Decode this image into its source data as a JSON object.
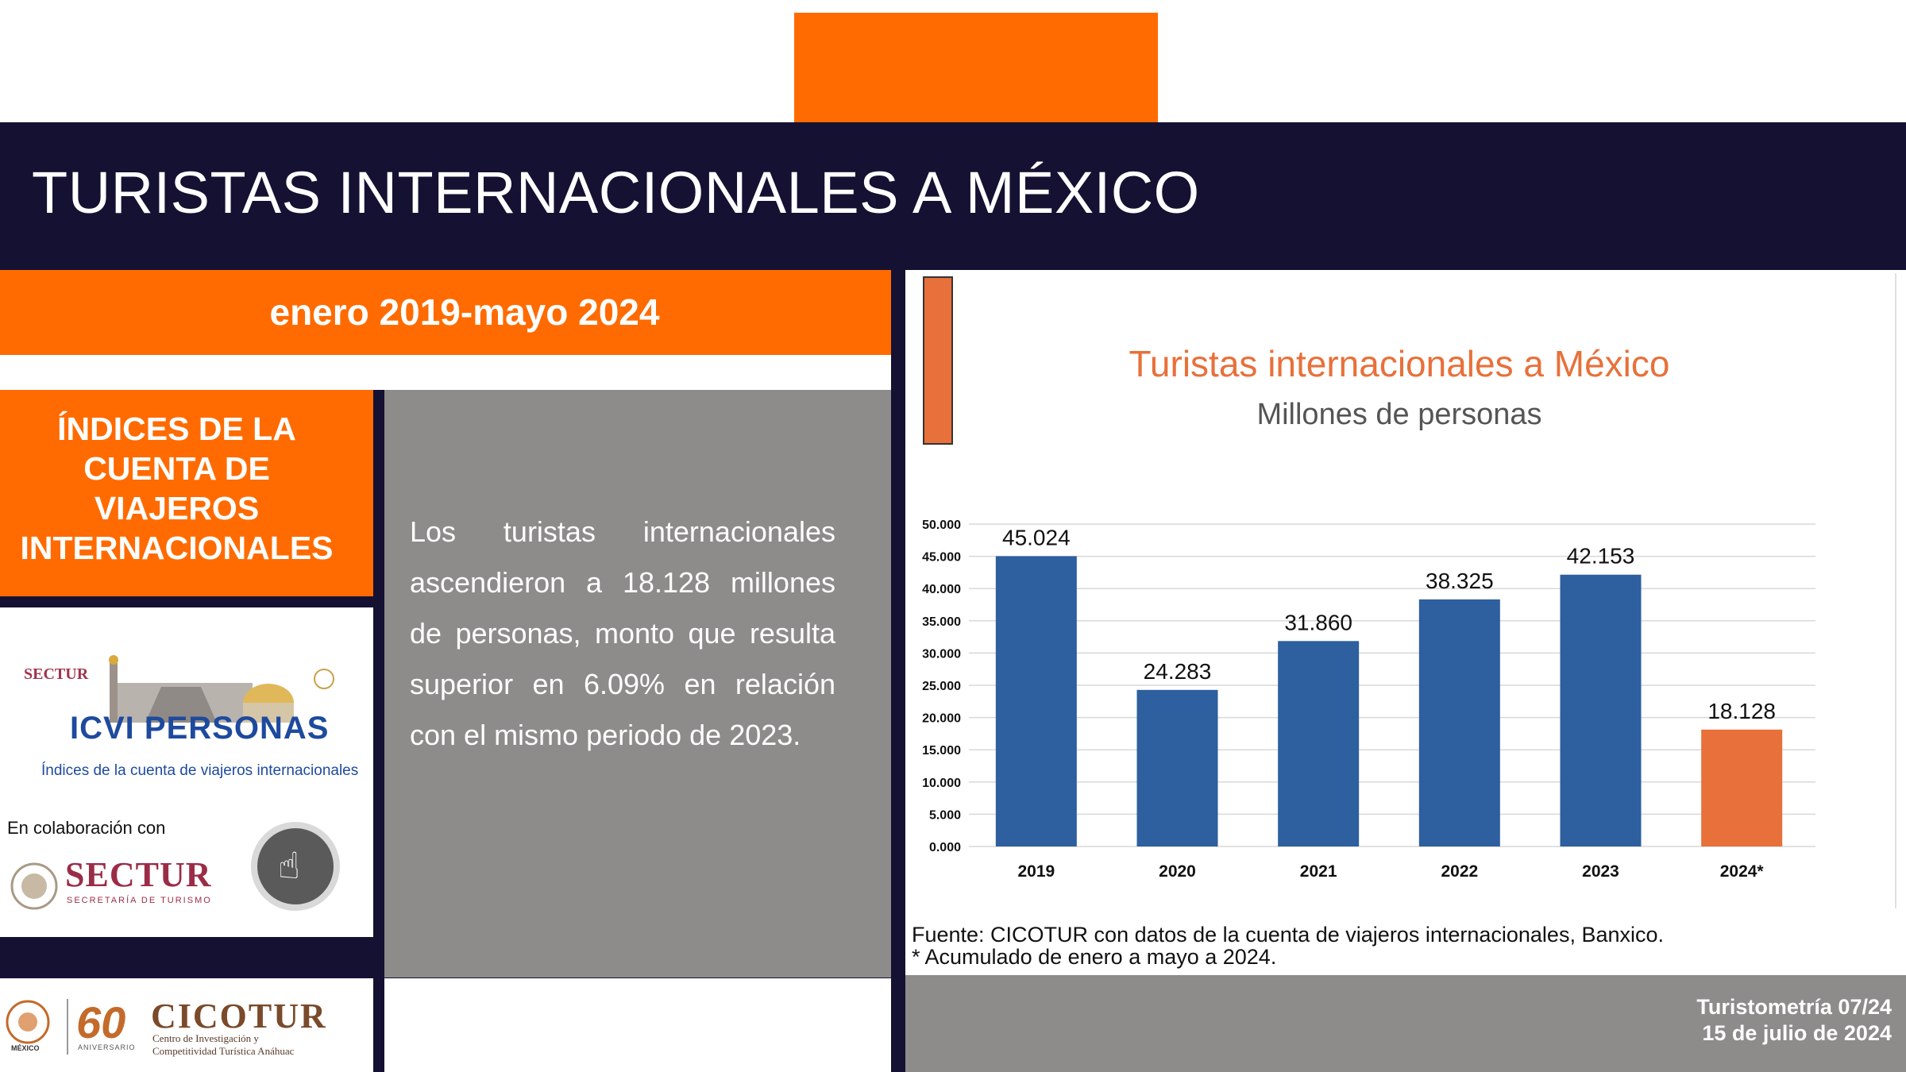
{
  "header": {
    "title": "TURISTAS INTERNACIONALES A MÉXICO",
    "period": "enero 2019-mayo 2024"
  },
  "left": {
    "icvi_title": "ÍNDICES DE LA CUENTA DE VIAJEROS INTERNACIONALES",
    "body": "Los turistas internacionales ascendieron a 18.128 millones de personas, monto que resulta superior en 6.09% en relación con el mismo periodo de 2023.",
    "logos": {
      "sectur_small": "SECTUR",
      "icvi_logo": "ICVI PERSONAS",
      "icvi_sub": "Índices de la cuenta de viajeros internacionales",
      "collab": "En colaboración con",
      "sectur_big": "SECTUR",
      "sectur_sub": "SECRETARÍA DE TURISMO",
      "cicotur": "CICOTUR",
      "cicotur_sub1": "Centro de Investigación y",
      "cicotur_sub2": "Competitividad Turística Anáhuac",
      "sixty": "60",
      "aniversario": "ANIVERSARIO",
      "mexico": "MÉXICO",
      "touch_icon": "touch-hand-icon"
    }
  },
  "chart_data": {
    "type": "bar",
    "title": "Turistas internacionales a México",
    "subtitle": "Millones de personas",
    "categories": [
      "2019",
      "2020",
      "2021",
      "2022",
      "2023",
      "2024*"
    ],
    "values": [
      45.024,
      24.283,
      31.86,
      38.325,
      42.153,
      18.128
    ],
    "value_labels": [
      "45.024",
      "24.283",
      "31.860",
      "38.325",
      "42.153",
      "18.128"
    ],
    "ylim": [
      0,
      50
    ],
    "yticks": [
      "0.000",
      "5.000",
      "10.000",
      "15.000",
      "20.000",
      "25.000",
      "30.000",
      "35.000",
      "40.000",
      "45.000",
      "50.000"
    ],
    "colors": [
      "#2e5f9e",
      "#2e5f9e",
      "#2e5f9e",
      "#2e5f9e",
      "#2e5f9e",
      "#e8703a"
    ],
    "title_color": "#e8703a",
    "subtitle_color": "#555555",
    "grid": true
  },
  "source": {
    "line1": "Fuente: CICOTUR con datos de la cuenta de viajeros internacionales, Banxico.",
    "line2": "* Acumulado de enero a mayo a 2024."
  },
  "footer": {
    "issue": "Turistometría 07/24",
    "date": "15 de julio de 2024"
  }
}
